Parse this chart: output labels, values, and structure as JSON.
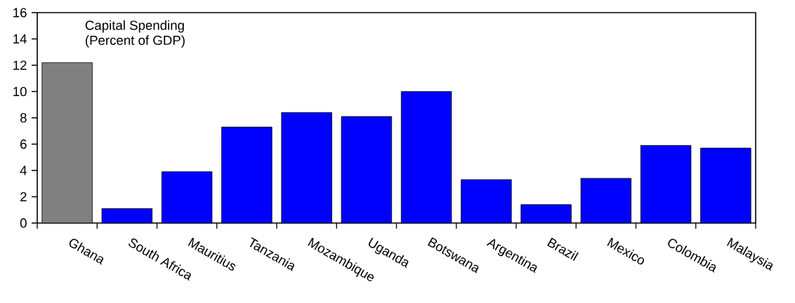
{
  "chart_data": {
    "type": "bar",
    "title": "Capital Spending",
    "subtitle": "(Percent of GDP)",
    "categories": [
      "Ghana",
      "South Africa",
      "Mauritius",
      "Tanzania",
      "Mozambique",
      "Uganda",
      "Botswana",
      "Argentina",
      "Brazil",
      "Mexico",
      "Colombia",
      "Malaysia"
    ],
    "values": [
      12.2,
      1.1,
      3.9,
      7.3,
      8.4,
      8.1,
      10.0,
      3.3,
      1.4,
      3.4,
      5.9,
      5.7
    ],
    "colors": [
      "#808080",
      "#0000ff",
      "#0000ff",
      "#0000ff",
      "#0000ff",
      "#0000ff",
      "#0000ff",
      "#0000ff",
      "#0000ff",
      "#0000ff",
      "#0000ff",
      "#0000ff"
    ],
    "ylim": [
      0,
      16
    ],
    "yticks": [
      0,
      2,
      4,
      6,
      8,
      10,
      12,
      14,
      16
    ],
    "grid": false
  }
}
